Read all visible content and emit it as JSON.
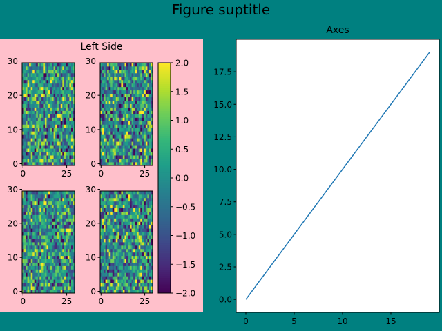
{
  "figure": {
    "suptitle": "Figure suptitle",
    "background": "#008080",
    "subfigure_background": "#ffc0cb"
  },
  "chart_data": [
    {
      "type": "heatmap",
      "panel": "left-subfigure",
      "title": "Left Side",
      "grid": "2x2",
      "colormap": "viridis",
      "image_shape": [
        30,
        30
      ],
      "data": "random normal values",
      "x_ticks": [
        0,
        25
      ],
      "y_ticks": [
        0,
        10,
        20,
        30
      ],
      "vmin": -2.0,
      "vmax": 2.0,
      "colorbar": {
        "ticks": [
          2.0,
          1.5,
          1.0,
          0.5,
          0.0,
          -0.5,
          -1.0,
          -1.5,
          -2.0
        ],
        "tick_labels": [
          "2.0",
          "1.5",
          "1.0",
          "0.5",
          "0.0",
          "−0.5",
          "−1.0",
          "−1.5",
          "−2.0"
        ],
        "placement": "right"
      }
    },
    {
      "type": "line",
      "panel": "right-subfigure",
      "title": "Axes",
      "x": [
        0,
        19
      ],
      "y": [
        0,
        19
      ],
      "xlim": [
        -1,
        20
      ],
      "ylim": [
        -1,
        20
      ],
      "x_ticks": [
        0,
        5,
        10,
        15
      ],
      "x_tick_labels": [
        "0",
        "5",
        "10",
        "15"
      ],
      "y_ticks": [
        0,
        2.5,
        5,
        7.5,
        10,
        12.5,
        15,
        17.5
      ],
      "y_tick_labels": [
        "0.0",
        "2.5",
        "5.0",
        "7.5",
        "10.0",
        "12.5",
        "15.0",
        "17.5"
      ],
      "color": "#1f77b4",
      "grid": false
    }
  ]
}
